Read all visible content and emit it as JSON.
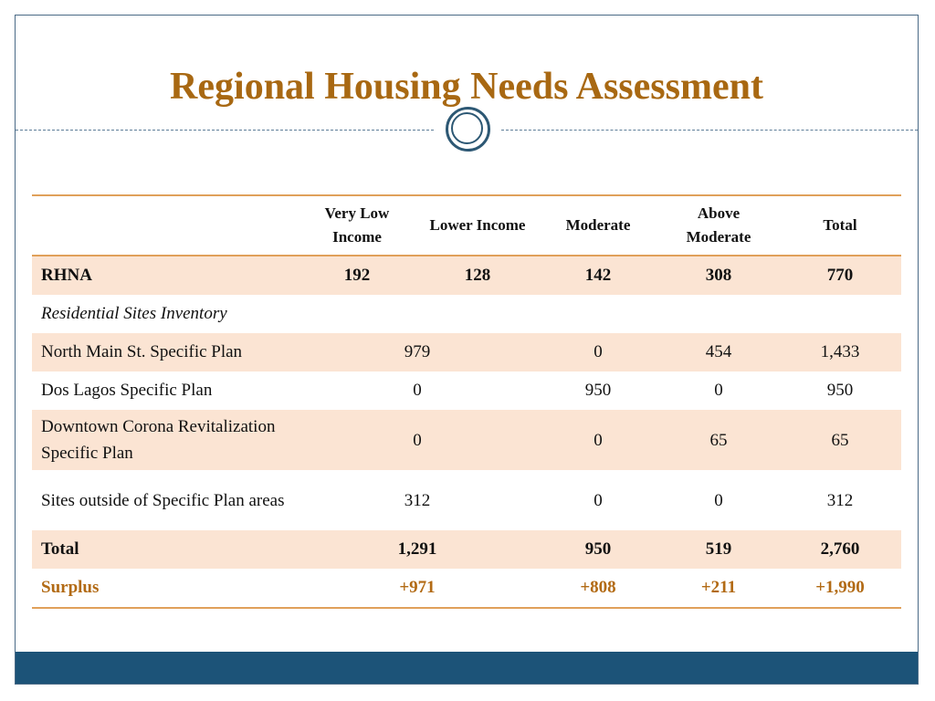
{
  "slide": {
    "title": "Regional Housing Needs Assessment"
  },
  "table": {
    "headers": [
      "",
      "Very Low Income",
      "Lower Income",
      "Moderate",
      "Above Moderate",
      "Total"
    ],
    "rhna": {
      "label": "RHNA",
      "values": [
        "192",
        "128",
        "142",
        "308",
        "770"
      ]
    },
    "section_label": "Residential Sites Inventory",
    "rows": [
      {
        "label": "North Main St. Specific Plan",
        "combined_low": "979",
        "moderate": "0",
        "above": "454",
        "total": "1,433"
      },
      {
        "label": "Dos Lagos Specific Plan",
        "combined_low": "0",
        "moderate": "950",
        "above": "0",
        "total": "950"
      },
      {
        "label": "Downtown Corona Revitalization Specific Plan",
        "combined_low": "0",
        "moderate": "0",
        "above": "65",
        "total": "65"
      },
      {
        "label": "Sites outside of Specific Plan areas",
        "combined_low": "312",
        "moderate": "0",
        "above": "0",
        "total": "312"
      }
    ],
    "total": {
      "label": "Total",
      "combined_low": "1,291",
      "moderate": "950",
      "above": "519",
      "total": "2,760"
    },
    "surplus": {
      "label": "Surplus",
      "combined_low": "+971",
      "moderate": "+808",
      "above": "+211",
      "total": "+1,990"
    }
  },
  "colors": {
    "title": "#a86812",
    "row_shade": "#fbe4d3",
    "rule": "#e0a05a",
    "surplus_text": "#b26a14",
    "footer_band": "#1c5378",
    "divider": "#2d5874"
  }
}
